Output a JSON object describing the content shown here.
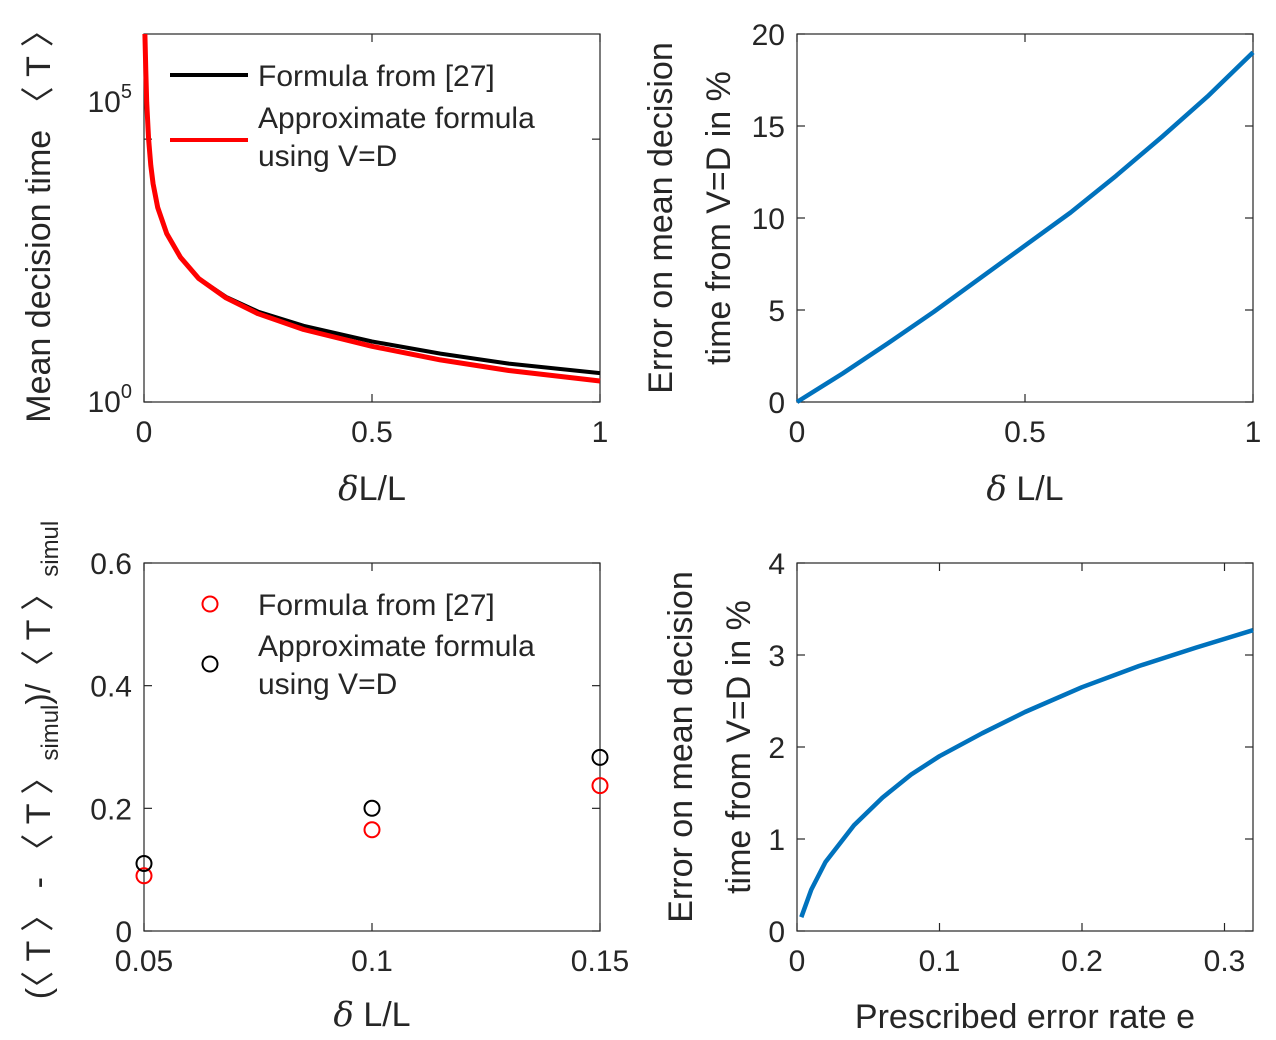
{
  "chart_data": [
    {
      "id": "top-left",
      "type": "line",
      "xlabel_parts": [
        "δ",
        "L/L"
      ],
      "ylabel": "Mean decision time 〈 T 〉",
      "xlim": [
        0,
        1
      ],
      "ylim_log10": [
        0,
        7
      ],
      "yscale": "log",
      "xticks": [
        0,
        0.5,
        1
      ],
      "xtick_labels": [
        "0",
        "0.5",
        "1"
      ],
      "yticks_log10": [
        0,
        5
      ],
      "ytick_labels": [
        {
          "base": "10",
          "exp": "0"
        },
        {
          "base": "10",
          "exp": "5"
        }
      ],
      "legend_position": "top-right",
      "series": [
        {
          "name_lines": [
            "Formula from [27]"
          ],
          "color": "#000000",
          "x": [
            0.002,
            0.004,
            0.006,
            0.01,
            0.015,
            0.02,
            0.03,
            0.05,
            0.08,
            0.12,
            0.18,
            0.25,
            0.35,
            0.5,
            0.65,
            0.8,
            1.0
          ],
          "y_log10": [
            7.1,
            6.3,
            5.7,
            5.0,
            4.5,
            4.15,
            3.7,
            3.2,
            2.75,
            2.35,
            2.0,
            1.72,
            1.45,
            1.15,
            0.92,
            0.73,
            0.55
          ]
        },
        {
          "name_lines": [
            "Approximate formula",
            "using V=D"
          ],
          "color": "#ff0000",
          "x": [
            0.002,
            0.004,
            0.006,
            0.01,
            0.015,
            0.02,
            0.03,
            0.05,
            0.08,
            0.12,
            0.18,
            0.25,
            0.35,
            0.5,
            0.65,
            0.8,
            1.0
          ],
          "y_log10": [
            7.1,
            6.3,
            5.7,
            5.0,
            4.5,
            4.15,
            3.7,
            3.2,
            2.75,
            2.35,
            1.98,
            1.68,
            1.38,
            1.06,
            0.8,
            0.6,
            0.4
          ]
        }
      ]
    },
    {
      "id": "top-right",
      "type": "line",
      "xlabel": "δ L/L",
      "ylabel_lines": [
        "Error on mean decision",
        "time from V=D in %"
      ],
      "xlim": [
        0,
        1
      ],
      "ylim": [
        0,
        20
      ],
      "xticks": [
        0,
        0.5,
        1
      ],
      "xtick_labels": [
        "0",
        "0.5",
        "1"
      ],
      "yticks": [
        0,
        5,
        10,
        15,
        20
      ],
      "ytick_labels": [
        "0",
        "5",
        "10",
        "15",
        "20"
      ],
      "series": [
        {
          "color": "#0072bd",
          "x": [
            0,
            0.1,
            0.2,
            0.3,
            0.4,
            0.5,
            0.6,
            0.7,
            0.8,
            0.9,
            1.0
          ],
          "y": [
            0,
            1.55,
            3.2,
            4.9,
            6.7,
            8.5,
            10.3,
            12.3,
            14.4,
            16.6,
            19.0
          ]
        }
      ]
    },
    {
      "id": "bottom-left",
      "type": "scatter",
      "xlabel": "δ L/L",
      "ylabel": "(〈 T 〉 - 〈 T 〉simul)/〈 T 〉simul",
      "ylabel_parts": [
        "(〈 T 〉 - 〈 T 〉",
        "simul",
        ")/〈 T 〉",
        "simul"
      ],
      "xlim": [
        0.05,
        0.15
      ],
      "ylim": [
        0,
        0.6
      ],
      "xticks": [
        0.05,
        0.1,
        0.15
      ],
      "xtick_labels": [
        "0.05",
        "0.1",
        "0.15"
      ],
      "yticks": [
        0,
        0.2,
        0.4,
        0.6
      ],
      "ytick_labels": [
        "0",
        "0.2",
        "0.4",
        "0.6"
      ],
      "legend_position": "top-right",
      "series": [
        {
          "name_lines": [
            "Formula from [27]"
          ],
          "color": "#ff0000",
          "x": [
            0.05,
            0.1,
            0.15
          ],
          "y": [
            0.09,
            0.165,
            0.237
          ]
        },
        {
          "name_lines": [
            "Approximate formula",
            "using V=D"
          ],
          "color": "#000000",
          "x": [
            0.05,
            0.1,
            0.15
          ],
          "y": [
            0.11,
            0.2,
            0.283
          ]
        }
      ]
    },
    {
      "id": "bottom-right",
      "type": "line",
      "xlabel": "Prescribed error rate e",
      "ylabel_lines": [
        "Error on mean decision",
        "time from V=D in %"
      ],
      "xlim": [
        0,
        0.32
      ],
      "ylim": [
        0,
        4
      ],
      "xticks": [
        0,
        0.1,
        0.2,
        0.3
      ],
      "xtick_labels": [
        "0",
        "0.1",
        "0.2",
        "0.3"
      ],
      "yticks": [
        0,
        1,
        2,
        3,
        4
      ],
      "ytick_labels": [
        "0",
        "1",
        "2",
        "3",
        "4"
      ],
      "series": [
        {
          "color": "#0072bd",
          "x": [
            0.003,
            0.01,
            0.02,
            0.04,
            0.06,
            0.08,
            0.1,
            0.13,
            0.16,
            0.2,
            0.24,
            0.28,
            0.32
          ],
          "y": [
            0.15,
            0.45,
            0.75,
            1.15,
            1.45,
            1.7,
            1.9,
            2.15,
            2.38,
            2.65,
            2.88,
            3.08,
            3.27
          ]
        }
      ]
    }
  ]
}
